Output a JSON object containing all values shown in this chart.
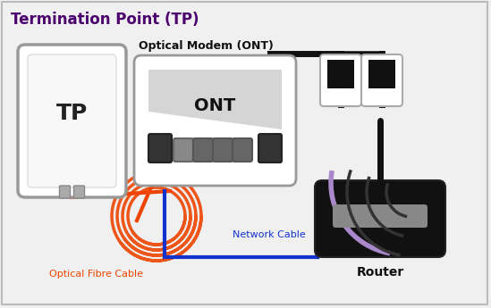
{
  "bg_color": "#f0f0f0",
  "border_color": "#bbbbbb",
  "title": "Termination Point (TP)",
  "title_color": "#4b006e",
  "title_fontsize": 12,
  "tp_label": "TP",
  "ont_label": "ONT",
  "ont_title": "Optical Modem (ONT)",
  "router_label": "Router",
  "optical_cable_label": "Optical Fibre Cable",
  "network_cable_label": "Network Cable",
  "optical_cable_color": "#ee4400",
  "network_cable_color": "#1133cc",
  "tp_border_color": "#999999",
  "ont_border_color": "#999999",
  "router_color": "#111111",
  "wifi_dark_color": "#333333",
  "wifi_light_color": "#aa88cc",
  "cable_black": "#111111"
}
